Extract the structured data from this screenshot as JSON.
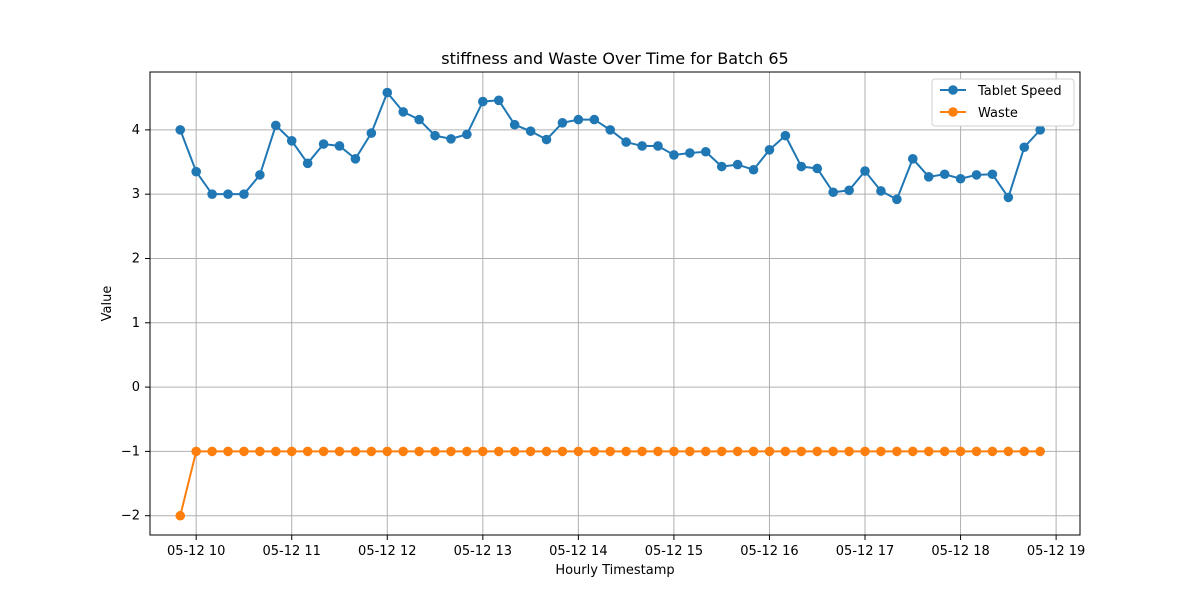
{
  "chart_data": {
    "type": "line",
    "title": "stiffness and Waste Over Time for Batch 65",
    "xlabel": "Hourly Timestamp",
    "ylabel": "Value",
    "x_ticks": [
      "05-12 10",
      "05-12 11",
      "05-12 12",
      "05-12 13",
      "05-12 14",
      "05-12 15",
      "05-12 16",
      "05-12 17",
      "05-12 18",
      "05-12 19"
    ],
    "y_ticks": [
      "−2",
      "−1",
      "0",
      "1",
      "2",
      "3",
      "4"
    ],
    "xlim": [
      "2024-05-12 09:31",
      "2024-05-12 19:15"
    ],
    "ylim": [
      -2.3,
      4.9
    ],
    "grid": true,
    "legend_position": "top-right",
    "x": [
      "05-12 09:50",
      "05-12 10:00",
      "05-12 10:10",
      "05-12 10:20",
      "05-12 10:30",
      "05-12 10:40",
      "05-12 10:50",
      "05-12 11:00",
      "05-12 11:10",
      "05-12 11:20",
      "05-12 11:30",
      "05-12 11:40",
      "05-12 11:50",
      "05-12 12:00",
      "05-12 12:10",
      "05-12 12:20",
      "05-12 12:30",
      "05-12 12:40",
      "05-12 12:50",
      "05-12 13:00",
      "05-12 13:10",
      "05-12 13:20",
      "05-12 13:30",
      "05-12 13:40",
      "05-12 13:50",
      "05-12 14:00",
      "05-12 14:10",
      "05-12 14:20",
      "05-12 14:30",
      "05-12 14:40",
      "05-12 14:50",
      "05-12 15:00",
      "05-12 15:10",
      "05-12 15:20",
      "05-12 15:30",
      "05-12 15:40",
      "05-12 15:50",
      "05-12 16:00",
      "05-12 16:10",
      "05-12 16:20",
      "05-12 16:30",
      "05-12 16:40",
      "05-12 16:50",
      "05-12 17:00",
      "05-12 17:10",
      "05-12 17:20",
      "05-12 17:30",
      "05-12 17:40",
      "05-12 17:50",
      "05-12 18:00",
      "05-12 18:10",
      "05-12 18:20",
      "05-12 18:30",
      "05-12 18:40",
      "05-12 18:50"
    ],
    "series": [
      {
        "name": "Tablet Speed",
        "color": "#1f77b4",
        "values": [
          4.0,
          3.35,
          3.0,
          3.0,
          3.0,
          3.3,
          4.07,
          3.83,
          3.48,
          3.78,
          3.75,
          3.55,
          3.95,
          4.58,
          4.28,
          4.16,
          3.91,
          3.86,
          3.93,
          4.44,
          4.46,
          4.08,
          3.98,
          3.85,
          4.11,
          4.16,
          4.16,
          4.0,
          3.81,
          3.75,
          3.75,
          3.61,
          3.64,
          3.66,
          3.43,
          3.46,
          3.38,
          3.69,
          3.91,
          3.43,
          3.4,
          3.03,
          3.06,
          3.36,
          3.05,
          2.92,
          3.55,
          3.27,
          3.31,
          3.24,
          3.3,
          3.31,
          2.95,
          3.73,
          4.0
        ]
      },
      {
        "name": "Waste",
        "color": "#ff7f0e",
        "values": [
          -2,
          -1,
          -1,
          -1,
          -1,
          -1,
          -1,
          -1,
          -1,
          -1,
          -1,
          -1,
          -1,
          -1,
          -1,
          -1,
          -1,
          -1,
          -1,
          -1,
          -1,
          -1,
          -1,
          -1,
          -1,
          -1,
          -1,
          -1,
          -1,
          -1,
          -1,
          -1,
          -1,
          -1,
          -1,
          -1,
          -1,
          -1,
          -1,
          -1,
          -1,
          -1,
          -1,
          -1,
          -1,
          -1,
          -1,
          -1,
          -1,
          -1,
          -1,
          -1,
          -1,
          -1,
          -1
        ]
      }
    ]
  }
}
